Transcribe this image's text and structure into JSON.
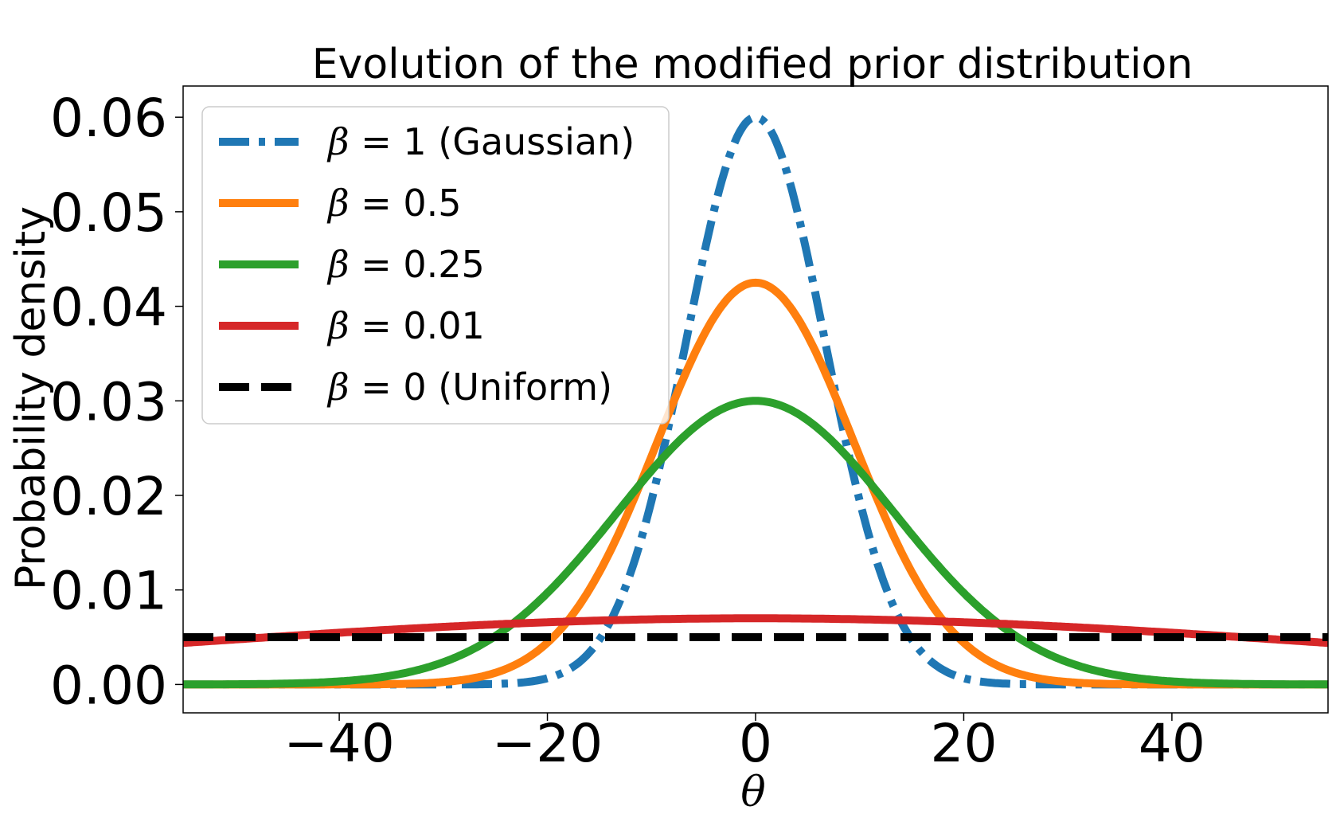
{
  "chart_data": {
    "type": "line",
    "title": "Evolution of the modified prior distribution",
    "xlabel": "θ",
    "ylabel": "Probability density",
    "xlim": [
      -55,
      55
    ],
    "ylim": [
      -0.003,
      0.0633
    ],
    "x_ticks": [
      -40,
      -20,
      0,
      20,
      40
    ],
    "x_tick_labels": [
      "−40",
      "−20",
      "0",
      "20",
      "40"
    ],
    "y_ticks": [
      0.0,
      0.01,
      0.02,
      0.03,
      0.04,
      0.05,
      0.06
    ],
    "y_tick_labels": [
      "0.00",
      "0.01",
      "0.02",
      "0.03",
      "0.04",
      "0.05",
      "0.06"
    ],
    "grid": false,
    "legend_position": "top-left",
    "series": [
      {
        "name": "β = 1 (Gaussian)",
        "label_beta": "β",
        "label_rest": " = 1 (Gaussian)",
        "color": "#1f77b4",
        "style": "dashdot",
        "beta": 1,
        "sigma": 6.66,
        "peak": 0.06
      },
      {
        "name": "β = 0.5",
        "label_beta": "β",
        "label_rest": " = 0.5",
        "color": "#ff7f0e",
        "style": "solid",
        "beta": 0.5,
        "sigma": 9.4,
        "peak": 0.0425
      },
      {
        "name": "β = 0.25",
        "label_beta": "β",
        "label_rest": " = 0.25",
        "color": "#2ca02c",
        "style": "solid",
        "beta": 0.25,
        "sigma": 13.3,
        "peak": 0.03
      },
      {
        "name": "β = 0.01",
        "label_beta": "β",
        "label_rest": " = 0.01",
        "color": "#d62728",
        "style": "solid",
        "beta": 0.01,
        "sigma": 57.0,
        "peak": 0.007
      },
      {
        "name": "β = 0 (Uniform)",
        "label_beta": "β",
        "label_rest": " = 0 (Uniform)",
        "color": "#000000",
        "style": "dashed",
        "beta": 0,
        "value": 0.005
      }
    ]
  }
}
